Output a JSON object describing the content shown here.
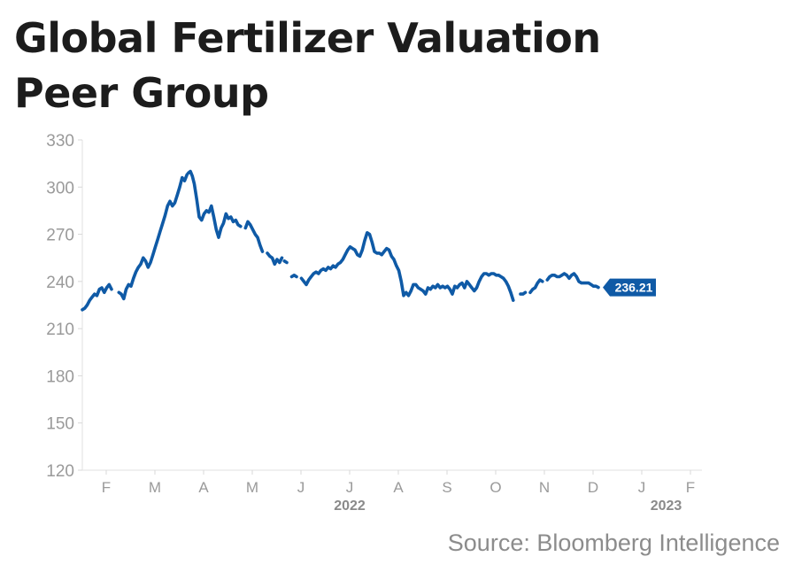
{
  "title_lines": [
    "Global Fertilizer Valuation",
    "Peer Group"
  ],
  "source": "Source: Bloomberg Intelligence",
  "colors": {
    "line": "#0f5aa6",
    "label_bg": "#0f5aa6",
    "axis_text": "#9a9a9a",
    "year_text": "#8a8a8a"
  },
  "chart_data": {
    "type": "line",
    "title": "Global Fertilizer Valuation Peer Group",
    "xlabel": "",
    "ylabel": "",
    "ylim": [
      120,
      330
    ],
    "yticks": [
      330,
      300,
      270,
      240,
      210,
      180,
      150,
      120
    ],
    "x_ticks": [
      "F",
      "M",
      "A",
      "M",
      "J",
      "J",
      "A",
      "S",
      "O",
      "N",
      "D",
      "J",
      "F"
    ],
    "year_labels": [
      {
        "text": "2022",
        "at_tick": 5
      },
      {
        "text": "2023",
        "at_tick": 11.5
      }
    ],
    "last_value_label": "236.21",
    "grid": false,
    "series": [
      {
        "color": "#0f5aa6",
        "segments": [
          [
            [
              0,
              222
            ],
            [
              0.05,
              223
            ],
            [
              0.1,
              225
            ],
            [
              0.15,
              228
            ],
            [
              0.2,
              230
            ],
            [
              0.25,
              232
            ],
            [
              0.3,
              231
            ],
            [
              0.35,
              235
            ],
            [
              0.4,
              236
            ],
            [
              0.45,
              233
            ],
            [
              0.5,
              236
            ],
            [
              0.55,
              238
            ],
            [
              0.6,
              235
            ]
          ],
          [
            [
              0.75,
              233
            ],
            [
              0.8,
              232
            ],
            [
              0.85,
              229
            ],
            [
              0.9,
              235
            ],
            [
              0.95,
              238
            ],
            [
              1.0,
              237
            ],
            [
              1.05,
              242
            ],
            [
              1.1,
              246
            ],
            [
              1.15,
              249
            ],
            [
              1.2,
              251
            ],
            [
              1.25,
              255
            ],
            [
              1.3,
              253
            ],
            [
              1.35,
              249
            ],
            [
              1.4,
              252
            ],
            [
              1.45,
              257
            ],
            [
              1.5,
              262
            ],
            [
              1.55,
              267
            ],
            [
              1.6,
              272
            ],
            [
              1.65,
              277
            ],
            [
              1.7,
              282
            ],
            [
              1.75,
              288
            ],
            [
              1.8,
              291
            ],
            [
              1.85,
              288
            ],
            [
              1.9,
              290
            ],
            [
              1.95,
              295
            ],
            [
              2.0,
              300
            ],
            [
              2.05,
              306
            ],
            [
              2.1,
              304
            ],
            [
              2.15,
              308
            ]
          ],
          [
            [
              2.18,
              309
            ],
            [
              2.22,
              310
            ],
            [
              2.26,
              307
            ],
            [
              2.3,
              302
            ],
            [
              2.35,
              292
            ],
            [
              2.4,
              281
            ],
            [
              2.45,
              279
            ],
            [
              2.5,
              283
            ],
            [
              2.55,
              285
            ],
            [
              2.6,
              284
            ],
            [
              2.65,
              288
            ],
            [
              2.7,
              281
            ],
            [
              2.75,
              273
            ],
            [
              2.8,
              268
            ],
            [
              2.85,
              274
            ],
            [
              2.9,
              277
            ],
            [
              2.95,
              283
            ],
            [
              3.0,
              280
            ],
            [
              3.05,
              281
            ],
            [
              3.1,
              278
            ],
            [
              3.15,
              279
            ],
            [
              3.2,
              276
            ],
            [
              3.25,
              275
            ]
          ],
          [
            [
              3.35,
              274
            ],
            [
              3.4,
              278
            ],
            [
              3.45,
              276
            ],
            [
              3.5,
              273
            ],
            [
              3.55,
              270
            ],
            [
              3.6,
              268
            ],
            [
              3.65,
              263
            ],
            [
              3.7,
              259
            ]
          ],
          [
            [
              3.8,
              258
            ],
            [
              3.85,
              256
            ],
            [
              3.9,
              255
            ],
            [
              3.95,
              251
            ],
            [
              4.0,
              254
            ],
            [
              4.05,
              252
            ],
            [
              4.1,
              255
            ]
          ],
          [
            [
              4.15,
              253
            ],
            [
              4.2,
              252
            ]
          ],
          [
            [
              4.3,
              243
            ],
            [
              4.35,
              244
            ],
            [
              4.4,
              243
            ]
          ],
          [
            [
              4.5,
              242
            ],
            [
              4.55,
              240
            ],
            [
              4.6,
              238
            ],
            [
              4.65,
              241
            ],
            [
              4.7,
              243
            ],
            [
              4.75,
              245
            ],
            [
              4.8,
              246
            ],
            [
              4.85,
              245
            ],
            [
              4.9,
              247
            ],
            [
              4.95,
              248
            ],
            [
              5.0,
              247
            ],
            [
              5.05,
              249
            ],
            [
              5.1,
              248
            ],
            [
              5.15,
              250
            ],
            [
              5.2,
              249
            ],
            [
              5.25,
              251
            ],
            [
              5.3,
              252
            ],
            [
              5.35,
              254
            ],
            [
              5.4,
              257
            ],
            [
              5.45,
              260
            ],
            [
              5.5,
              262
            ],
            [
              5.55,
              261
            ],
            [
              5.6,
              260
            ],
            [
              5.65,
              257
            ],
            [
              5.7,
              256
            ],
            [
              5.75,
              260
            ],
            [
              5.8,
              266
            ],
            [
              5.85,
              271
            ],
            [
              5.9,
              270
            ],
            [
              5.95,
              265
            ],
            [
              6.0,
              259
            ],
            [
              6.05,
              258
            ],
            [
              6.1,
              258
            ],
            [
              6.15,
              257
            ],
            [
              6.2,
              259
            ],
            [
              6.25,
              261
            ],
            [
              6.3,
              260
            ],
            [
              6.35,
              256
            ],
            [
              6.4,
              254
            ],
            [
              6.45,
              250
            ],
            [
              6.5,
              247
            ],
            [
              6.55,
              240
            ],
            [
              6.6,
              231
            ],
            [
              6.65,
              233
            ],
            [
              6.7,
              231
            ],
            [
              6.75,
              234
            ],
            [
              6.8,
              238
            ],
            [
              6.85,
              238
            ],
            [
              6.9,
              236
            ],
            [
              6.95,
              235
            ],
            [
              7.0,
              234
            ],
            [
              7.05,
              232
            ],
            [
              7.1,
              236
            ],
            [
              7.15,
              235
            ],
            [
              7.2,
              237
            ],
            [
              7.25,
              236
            ],
            [
              7.3,
              238
            ],
            [
              7.35,
              236
            ],
            [
              7.4,
              237
            ],
            [
              7.45,
              236
            ],
            [
              7.5,
              237
            ],
            [
              7.55,
              235
            ],
            [
              7.6,
              232
            ],
            [
              7.65,
              237
            ],
            [
              7.7,
              236
            ],
            [
              7.75,
              238
            ],
            [
              7.8,
              239
            ],
            [
              7.85,
              236
            ],
            [
              7.9,
              240
            ],
            [
              7.95,
              238
            ],
            [
              8.0,
              236
            ],
            [
              8.05,
              234
            ],
            [
              8.1,
              236
            ],
            [
              8.15,
              240
            ],
            [
              8.2,
              243
            ],
            [
              8.25,
              245
            ],
            [
              8.3,
              245
            ],
            [
              8.35,
              244
            ],
            [
              8.4,
              245
            ],
            [
              8.45,
              245
            ],
            [
              8.5,
              244
            ],
            [
              8.55,
              244
            ],
            [
              8.6,
              243
            ],
            [
              8.65,
              242
            ],
            [
              8.7,
              240
            ],
            [
              8.75,
              237
            ],
            [
              8.8,
              233
            ],
            [
              8.85,
              228
            ]
          ],
          [
            [
              9.0,
              232
            ],
            [
              9.05,
              232
            ],
            [
              9.1,
              233
            ]
          ],
          [
            [
              9.2,
              233
            ],
            [
              9.25,
              235
            ],
            [
              9.3,
              236
            ],
            [
              9.35,
              239
            ],
            [
              9.4,
              241
            ],
            [
              9.45,
              240
            ]
          ],
          [
            [
              9.55,
              241
            ],
            [
              9.6,
              243
            ],
            [
              9.65,
              244
            ],
            [
              9.7,
              244
            ],
            [
              9.75,
              243
            ],
            [
              9.8,
              243
            ],
            [
              9.85,
              244
            ],
            [
              9.9,
              245
            ],
            [
              9.95,
              244
            ],
            [
              10.0,
              242
            ],
            [
              10.05,
              244
            ],
            [
              10.1,
              245
            ],
            [
              10.15,
              243
            ],
            [
              10.2,
              240
            ],
            [
              10.25,
              239
            ],
            [
              10.3,
              239
            ],
            [
              10.35,
              239
            ],
            [
              10.4,
              239
            ],
            [
              10.45,
              238
            ],
            [
              10.5,
              237
            ],
            [
              10.55,
              237
            ],
            [
              10.6,
              236.21
            ]
          ]
        ]
      }
    ]
  }
}
